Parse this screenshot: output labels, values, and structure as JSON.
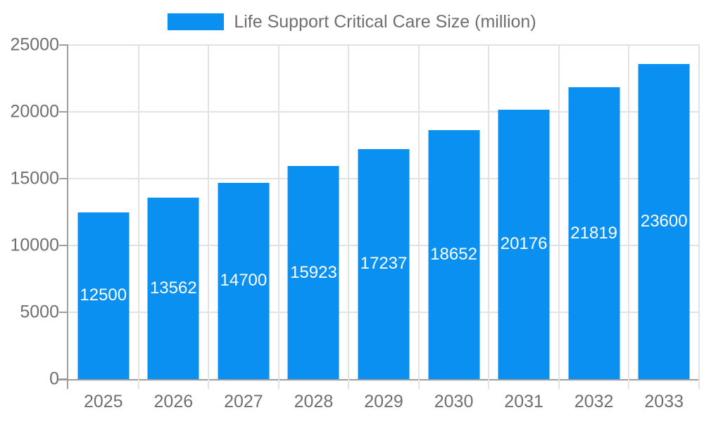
{
  "chart_data": {
    "type": "bar",
    "title": "",
    "legend_label": "Life Support Critical Care Size (million)",
    "legend_position": "top",
    "categories": [
      "2025",
      "2026",
      "2027",
      "2028",
      "2029",
      "2030",
      "2031",
      "2032",
      "2033"
    ],
    "values": [
      12500,
      13562,
      14700,
      15923,
      17237,
      18652,
      20176,
      21819,
      23600
    ],
    "xlabel": "",
    "ylabel": "",
    "ylim": [
      0,
      25000
    ],
    "yticks": [
      0,
      5000,
      10000,
      15000,
      20000,
      25000
    ],
    "grid": true,
    "bar_color": "#0a90f0",
    "grid_color": "#e2e2e2",
    "axis_color": "#9e9e9e",
    "text_color": "#6f6f6f",
    "value_label_color": "#ffffff"
  }
}
